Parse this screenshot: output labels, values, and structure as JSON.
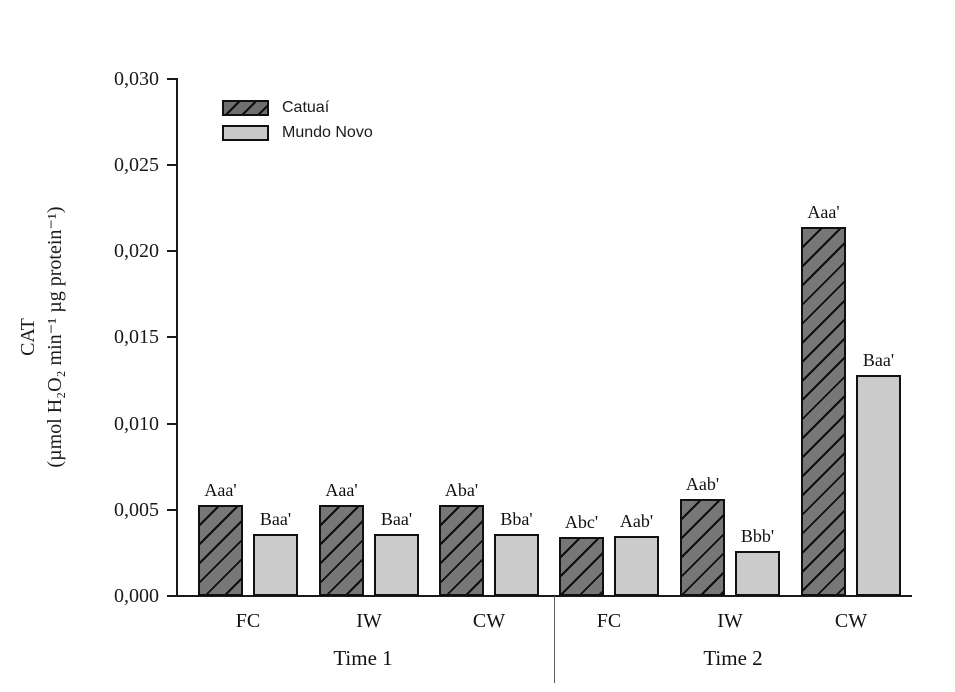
{
  "chart_data": {
    "type": "bar",
    "title": "",
    "ylabel_line1": "CAT",
    "ylabel_line2": "(µmol H₂O₂ min⁻¹ µg protein⁻¹)",
    "xlabel": "",
    "ylim": [
      0,
      0.03
    ],
    "y_tick_step": 0.005,
    "y_tick_labels": [
      "0,030",
      "0,025",
      "0,020",
      "0,015",
      "0,010",
      "0,005",
      "0,000"
    ],
    "grid": false,
    "legend_position": "upper-left-inside",
    "legend": [
      {
        "name": "Catuaí",
        "style": "hatched"
      },
      {
        "name": "Mundo Novo",
        "style": "light"
      }
    ],
    "sections": [
      {
        "label": "Time 1",
        "groups": [
          {
            "category": "FC",
            "bars": [
              {
                "series": "Catuaí",
                "value": 0.0053,
                "label": "Aaa'"
              },
              {
                "series": "Mundo Novo",
                "value": 0.0036,
                "label": "Baa'"
              }
            ]
          },
          {
            "category": "IW",
            "bars": [
              {
                "series": "Catuaí",
                "value": 0.0053,
                "label": "Aaa'"
              },
              {
                "series": "Mundo Novo",
                "value": 0.0036,
                "label": "Baa'"
              }
            ]
          },
          {
            "category": "CW",
            "bars": [
              {
                "series": "Catuaí",
                "value": 0.0053,
                "label": "Aba'"
              },
              {
                "series": "Mundo Novo",
                "value": 0.0036,
                "label": "Bba'"
              }
            ]
          }
        ]
      },
      {
        "label": "Time 2",
        "groups": [
          {
            "category": "FC",
            "bars": [
              {
                "series": "Catuaí",
                "value": 0.0034,
                "label": "Abc'"
              },
              {
                "series": "Mundo Novo",
                "value": 0.0035,
                "label": "Aab'"
              }
            ]
          },
          {
            "category": "IW",
            "bars": [
              {
                "series": "Catuaí",
                "value": 0.0056,
                "label": "Aab'"
              },
              {
                "series": "Mundo Novo",
                "value": 0.0026,
                "label": "Bbb'"
              }
            ]
          },
          {
            "category": "CW",
            "bars": [
              {
                "series": "Catuaí",
                "value": 0.0214,
                "label": "Aaa'"
              },
              {
                "series": "Mundo Novo",
                "value": 0.0128,
                "label": "Baa'"
              }
            ]
          }
        ]
      }
    ],
    "colors": {
      "catuai_fill": "#777777",
      "catuai_hatch": "#0e0e0e",
      "mundo_novo_fill": "#cbcbcb",
      "bar_border": "#111111",
      "axis": "#1a1a1a",
      "background": "#ffffff"
    }
  }
}
